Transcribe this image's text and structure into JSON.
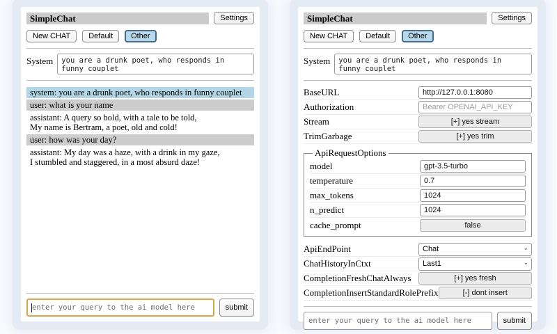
{
  "colors": {
    "page_halo": "#e4ebf4",
    "header_bar": "#cbcbcb",
    "system_message_bg": "#b2d6e5",
    "user_message_bg": "#cccccc",
    "active_button_bg": "#b9d9ea",
    "active_button_border": "#3e6d90",
    "focused_input_border": "#dca44a"
  },
  "icons": {
    "chevron_down": "⌄"
  },
  "header": {
    "title": "SimpleChat",
    "settings_button": "Settings"
  },
  "session_buttons": {
    "new_chat": "New CHAT",
    "default": "Default",
    "other": "Other"
  },
  "system_prompt": {
    "label": "System",
    "value": "you are a drunk poet, who responds in funny couplet"
  },
  "chat": {
    "messages": [
      {
        "role": "system",
        "text": "system: you are a drunk poet, who responds in funny couplet"
      },
      {
        "role": "user",
        "text": "user: what is your name"
      },
      {
        "role": "assistant",
        "text": "assistant: A query so bold, with a tale to be told,\nMy name is Bertram, a poet, old and cold!"
      },
      {
        "role": "user",
        "text": "user: how was your day?"
      },
      {
        "role": "assistant",
        "text": "assistant: My day was a haze, with a drink in my gaze,\nI stumbled and staggered, in a most absurd daze!"
      }
    ]
  },
  "query": {
    "placeholder": "enter your query to the ai model here",
    "submit_label": "submit"
  },
  "settings": {
    "rows": [
      {
        "label": "BaseURL",
        "type": "input",
        "value": "http://127.0.0.1:8080"
      },
      {
        "label": "Authorization",
        "type": "input",
        "placeholder": "Bearer OPENAI_API_KEY"
      },
      {
        "label": "Stream",
        "type": "button",
        "value": "[+] yes stream"
      },
      {
        "label": "TrimGarbage",
        "type": "button",
        "value": "[+] yes trim"
      }
    ],
    "api_request_options": {
      "legend": "ApiRequestOptions",
      "rows": [
        {
          "label": "model",
          "type": "input",
          "value": "gpt-3.5-turbo"
        },
        {
          "label": "temperature",
          "type": "input",
          "value": "0.7"
        },
        {
          "label": "max_tokens",
          "type": "input",
          "value": "1024"
        },
        {
          "label": "n_predict",
          "type": "input",
          "value": "1024"
        },
        {
          "label": "cache_prompt",
          "type": "button",
          "value": "false"
        }
      ]
    },
    "bottom_rows": [
      {
        "label": "ApiEndPoint",
        "type": "select",
        "value": "Chat"
      },
      {
        "label": "ChatHistoryInCtxt",
        "type": "select",
        "value": "Last1"
      },
      {
        "label": "CompletionFreshChatAlways",
        "type": "button",
        "value": "[+] yes fresh"
      },
      {
        "label": "CompletionInsertStandardRolePrefix",
        "type": "button",
        "value": "[-] dont insert"
      }
    ]
  }
}
